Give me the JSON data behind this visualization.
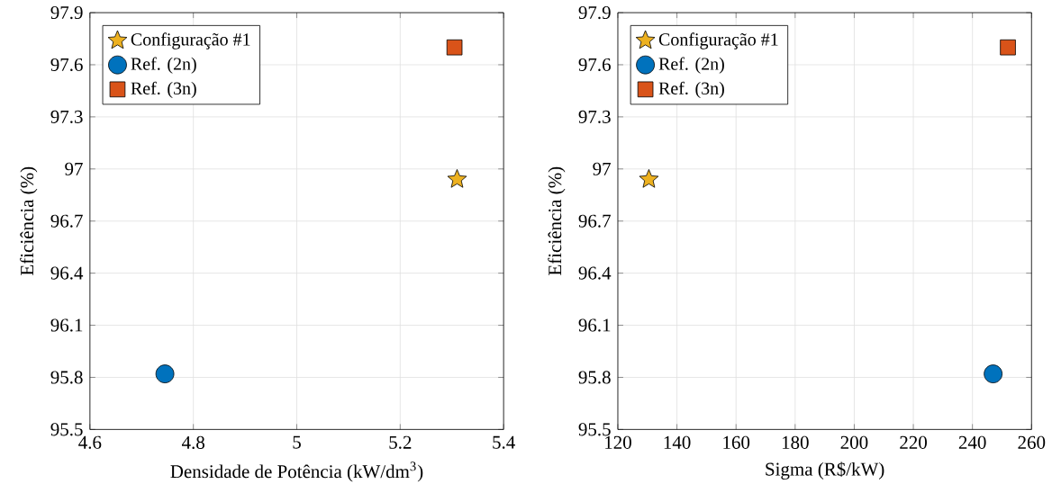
{
  "chart_data": [
    {
      "type": "scatter",
      "xlabel": "Densidade de Potência (kW/dm$^{3}$)",
      "ylabel": "Eficiência (%)",
      "xlim": [
        4.6,
        5.4
      ],
      "xticks": [
        4.6,
        4.8,
        5,
        5.2,
        5.4
      ],
      "ylim": [
        95.5,
        97.9
      ],
      "yticks": [
        95.5,
        95.8,
        96.1,
        96.4,
        96.7,
        97,
        97.3,
        97.6,
        97.9
      ],
      "grid": true,
      "legend": "top left",
      "series": [
        {
          "name": "Configuração #1",
          "color": "#edb120",
          "marker": "star",
          "x": [
            5.31
          ],
          "values": [
            96.94
          ]
        },
        {
          "name": "Ref. (2n)",
          "color": "#0072bd",
          "marker": "circle",
          "x": [
            4.745
          ],
          "values": [
            95.82
          ]
        },
        {
          "name": "Ref. (3n)",
          "color": "#d95319",
          "marker": "square",
          "x": [
            5.305
          ],
          "values": [
            97.7
          ]
        }
      ]
    },
    {
      "type": "scatter",
      "xlabel": "Sigma (R$/kW)",
      "ylabel": "Eficiência (%)",
      "xlim": [
        120,
        260
      ],
      "xticks": [
        120,
        140,
        160,
        180,
        200,
        220,
        240,
        260
      ],
      "ylim": [
        95.5,
        97.9
      ],
      "yticks": [
        95.5,
        95.8,
        96.1,
        96.4,
        96.7,
        97,
        97.3,
        97.6,
        97.9
      ],
      "grid": true,
      "legend": "top left",
      "series": [
        {
          "name": "Configuração #1",
          "color": "#edb120",
          "marker": "star",
          "x": [
            130.5
          ],
          "values": [
            96.94
          ]
        },
        {
          "name": "Ref. (2n)",
          "color": "#0072bd",
          "marker": "circle",
          "x": [
            247
          ],
          "values": [
            95.82
          ]
        },
        {
          "name": "Ref. (3n)",
          "color": "#d95319",
          "marker": "square",
          "x": [
            252
          ],
          "values": [
            97.7
          ]
        }
      ]
    }
  ]
}
